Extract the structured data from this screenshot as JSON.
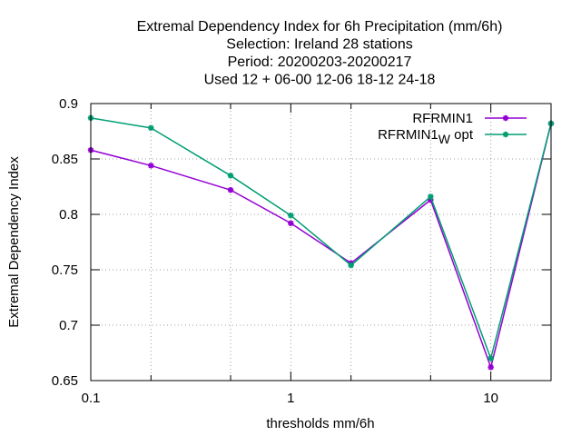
{
  "chart_data": {
    "type": "line",
    "title_lines": [
      "Extremal Dependency Index  for 6h Precipitation (mm/6h)",
      "Selection: Ireland     28 stations",
      "Period: 20200203-20200217",
      "Used  12 + 06-00 12-06 18-12 24-18"
    ],
    "xlabel": "thresholds mm/6h",
    "ylabel": "Extremal Dependency Index",
    "xscale": "log",
    "xlim": [
      0.1,
      20
    ],
    "ylim": [
      0.65,
      0.9
    ],
    "x_ticks": [
      0.1,
      0.2,
      0.5,
      1,
      2,
      5,
      10,
      20
    ],
    "x_tick_labels": [
      "0.1",
      "",
      "",
      "1",
      "",
      "",
      "10",
      ""
    ],
    "y_ticks": [
      0.65,
      0.7,
      0.75,
      0.8,
      0.85,
      0.9
    ],
    "y_tick_labels": [
      "0.65",
      "0.7",
      "0.75",
      "0.8",
      "0.85",
      "0.9"
    ],
    "grid": true,
    "legend_position": "top-right",
    "x": [
      0.1,
      0.2,
      0.5,
      1,
      2,
      5,
      10,
      20
    ],
    "series": [
      {
        "name": "RFRMIN1",
        "legend_label_main": "RFRMIN1",
        "legend_label_sub": "",
        "legend_label_tail": "",
        "color": "#9400d3",
        "values": [
          0.858,
          0.844,
          0.822,
          0.792,
          0.756,
          0.813,
          0.662,
          0.882
        ]
      },
      {
        "name": "RFRMIN1_W opt",
        "legend_label_main": "RFRMIN1",
        "legend_label_sub": "W",
        "legend_label_tail": " opt",
        "color": "#009e73",
        "values": [
          0.887,
          0.878,
          0.835,
          0.799,
          0.754,
          0.816,
          0.67,
          0.882
        ]
      }
    ]
  }
}
